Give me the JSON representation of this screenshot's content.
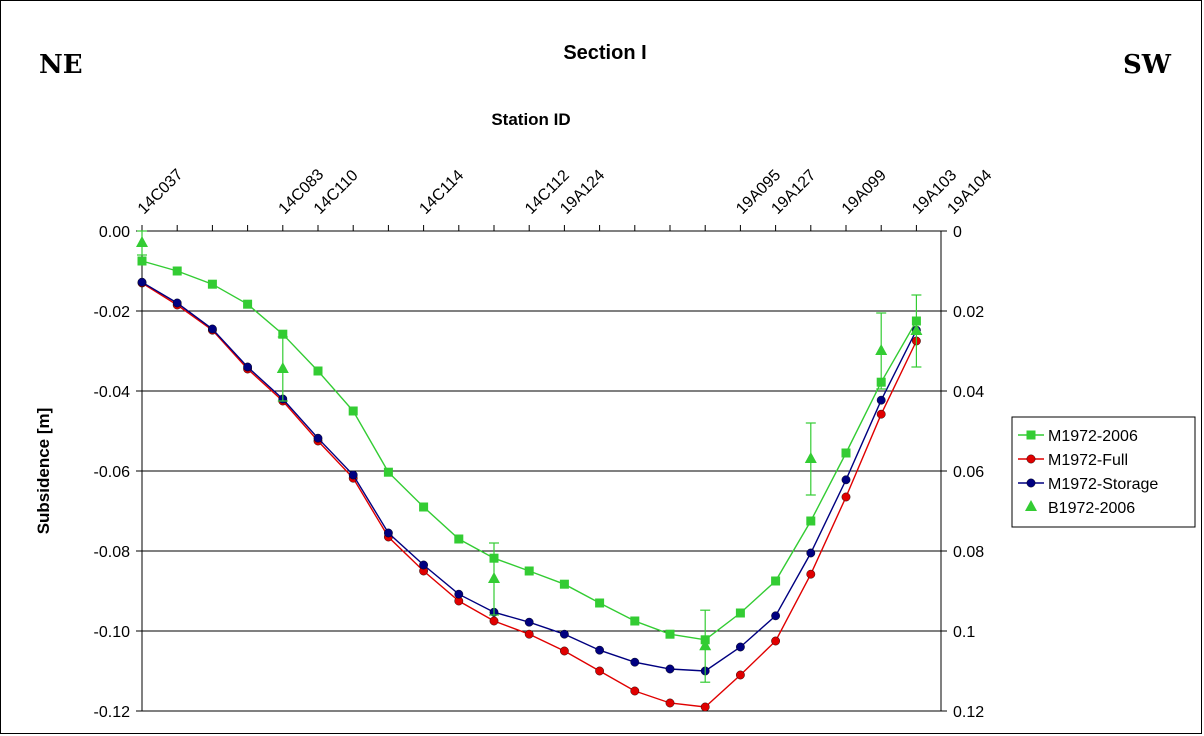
{
  "labels": {
    "left_direction": "NE",
    "right_direction": "SW"
  },
  "chart_data": {
    "type": "line",
    "title": "Section I",
    "top_axis_label": "Station ID",
    "ylabel": "Subsidence [m]",
    "ylim": [
      -0.12,
      0
    ],
    "y_ticks_left": [
      "0.00",
      "-0.02",
      "-0.04",
      "-0.06",
      "-0.08",
      "-0.10",
      "-0.12"
    ],
    "y_ticks_right": [
      "0",
      "0.02",
      "0.04",
      "0.06",
      "0.08",
      "0.1",
      "0.12"
    ],
    "grid": "horizontal",
    "legend_position": "right",
    "x_ticks": [
      0,
      1,
      2,
      3,
      4,
      5,
      6,
      7,
      8,
      9,
      10,
      11,
      12,
      13,
      14,
      15,
      16,
      17,
      18,
      19,
      20,
      21,
      22
    ],
    "stations": [
      {
        "label": "14C037",
        "x": 0
      },
      {
        "label": "14C083",
        "x": 4
      },
      {
        "label": "14C110",
        "x": 5
      },
      {
        "label": "14C114",
        "x": 8
      },
      {
        "label": "14C112",
        "x": 11
      },
      {
        "label": "19A124",
        "x": 12
      },
      {
        "label": "19A095",
        "x": 17
      },
      {
        "label": "19A127",
        "x": 18
      },
      {
        "label": "19A099",
        "x": 20
      },
      {
        "label": "19A103",
        "x": 22
      },
      {
        "label": "19A104",
        "x": 23
      }
    ],
    "series": [
      {
        "name": "M1972-2006",
        "marker": "square",
        "color": "#33cc33",
        "x": [
          0,
          1,
          2,
          3,
          4,
          5,
          6,
          7,
          8,
          9,
          10,
          11,
          12,
          13,
          14,
          15,
          16,
          17,
          18,
          19,
          20,
          21,
          22
        ],
        "values": [
          -0.0075,
          -0.01,
          -0.0133,
          -0.0183,
          -0.0258,
          -0.035,
          -0.045,
          -0.0603,
          -0.069,
          -0.077,
          -0.0818,
          -0.085,
          -0.0883,
          -0.093,
          -0.0975,
          -0.1008,
          -0.1022,
          -0.0955,
          -0.0875,
          -0.0725,
          -0.0555,
          -0.0378,
          -0.0225
        ]
      },
      {
        "name": "M1972-Full",
        "marker": "circle",
        "color": "#e00000",
        "x": [
          0,
          1,
          2,
          3,
          4,
          5,
          6,
          7,
          8,
          9,
          10,
          11,
          12,
          13,
          14,
          15,
          16,
          17,
          18,
          19,
          20,
          21,
          22
        ],
        "values": [
          -0.013,
          -0.0185,
          -0.0248,
          -0.0345,
          -0.0425,
          -0.0525,
          -0.0618,
          -0.0765,
          -0.085,
          -0.0925,
          -0.0975,
          -0.1008,
          -0.105,
          -0.11,
          -0.115,
          -0.118,
          -0.119,
          -0.111,
          -0.1025,
          -0.0858,
          -0.0665,
          -0.0458,
          -0.0275
        ]
      },
      {
        "name": "M1972-Storage",
        "marker": "circle",
        "color": "#000080",
        "x": [
          0,
          1,
          2,
          3,
          4,
          5,
          6,
          7,
          8,
          9,
          10,
          11,
          12,
          13,
          14,
          15,
          16,
          17,
          18,
          19,
          20,
          21,
          22
        ],
        "values": [
          -0.0128,
          -0.018,
          -0.0245,
          -0.034,
          -0.042,
          -0.0518,
          -0.061,
          -0.0755,
          -0.0835,
          -0.0908,
          -0.0953,
          -0.0978,
          -0.1008,
          -0.1048,
          -0.1078,
          -0.1095,
          -0.11,
          -0.104,
          -0.0962,
          -0.0805,
          -0.0622,
          -0.0423,
          -0.0248
        ]
      },
      {
        "name": "B1972-2006",
        "marker": "triangle",
        "color": "#33cc33",
        "line": false,
        "x": [
          0,
          4,
          10,
          16,
          19,
          21,
          22
        ],
        "values": [
          -0.003,
          -0.0345,
          -0.087,
          -0.1038,
          -0.057,
          -0.03,
          -0.025
        ],
        "error": [
          0.003,
          0.008,
          0.009,
          0.009,
          0.009,
          0.0095,
          0.009
        ]
      }
    ]
  }
}
